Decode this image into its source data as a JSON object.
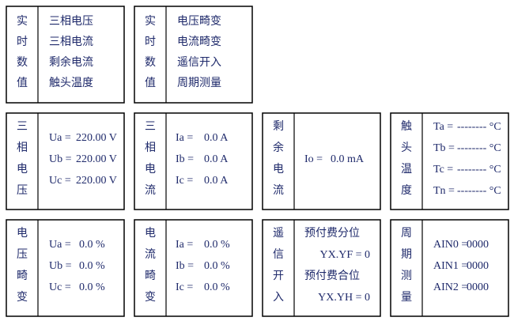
{
  "menus": [
    {
      "label": [
        "实",
        "时",
        "数",
        "值"
      ],
      "items": [
        "三相电压",
        "三相电流",
        "剩余电流",
        "触头温度"
      ]
    },
    {
      "label": [
        "实",
        "时",
        "数",
        "值"
      ],
      "items": [
        "电压畸变",
        "电流畸变",
        "遥信开入",
        "周期测量"
      ]
    }
  ],
  "panels": [
    {
      "label": [
        "三",
        "相",
        "电",
        "压"
      ],
      "rows": [
        {
          "name": "Ua =",
          "value": "220.00 V"
        },
        {
          "name": "Ub =",
          "value": "220.00 V"
        },
        {
          "name": "Uc =",
          "value": "220.00 V"
        }
      ]
    },
    {
      "label": [
        "三",
        "相",
        "电",
        "流"
      ],
      "rows": [
        {
          "name": "Ia =",
          "value": "0.0 A"
        },
        {
          "name": "Ib =",
          "value": "0.0 A"
        },
        {
          "name": "Ic =",
          "value": "0.0 A"
        }
      ]
    },
    {
      "label": [
        "剩",
        "余",
        "电",
        "流"
      ],
      "rows": [
        {
          "name": "Io =",
          "value": "0.0 mA"
        }
      ]
    },
    {
      "label": [
        "触",
        "头",
        "温",
        "度"
      ],
      "rows": [
        {
          "name": "Ta =",
          "value": "-------- °C"
        },
        {
          "name": "Tb =",
          "value": "-------- °C"
        },
        {
          "name": "Tc =",
          "value": "-------- °C"
        },
        {
          "name": "Tn =",
          "value": "-------- °C"
        }
      ]
    },
    {
      "label": [
        "电",
        "压",
        "畸",
        "变"
      ],
      "rows": [
        {
          "name": "Ua =",
          "value": "0.0 %"
        },
        {
          "name": "Ub =",
          "value": "0.0 %"
        },
        {
          "name": "Uc =",
          "value": "0.0 %"
        }
      ]
    },
    {
      "label": [
        "电",
        "流",
        "畸",
        "变"
      ],
      "rows": [
        {
          "name": "Ia =",
          "value": "0.0 %"
        },
        {
          "name": "Ib =",
          "value": "0.0 %"
        },
        {
          "name": "Ic =",
          "value": "0.0 %"
        }
      ]
    },
    {
      "label": [
        "遥",
        "信",
        "开",
        "入"
      ],
      "rows": [
        {
          "name": "预付费分位",
          "value": "YX.YF = 0"
        },
        {
          "name": "预付费合位",
          "value": "YX.YH = 0"
        }
      ]
    },
    {
      "label": [
        "周",
        "期",
        "测",
        "量"
      ],
      "rows": [
        {
          "name": "AIN0 =",
          "value": "0000"
        },
        {
          "name": "AIN1 =",
          "value": "0000"
        },
        {
          "name": "AIN2 =",
          "value": "0000"
        }
      ]
    }
  ]
}
